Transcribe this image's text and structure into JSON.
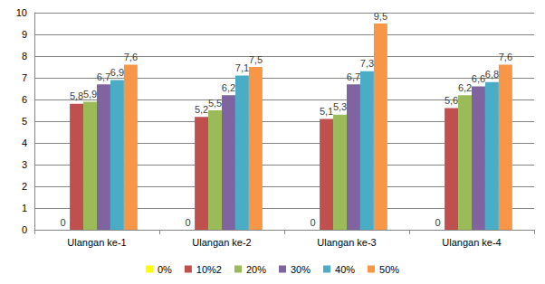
{
  "chart_data": {
    "type": "bar",
    "categories": [
      "Ulangan ke-1",
      "Ulangan ke-2",
      "Ulangan ke-3",
      "Ulangan ke-4"
    ],
    "series": [
      {
        "name": "0%",
        "color": "#FFFF00",
        "values": [
          0,
          0,
          0,
          0
        ]
      },
      {
        "name": "10%2",
        "color": "#C0504D",
        "values": [
          5.8,
          5.2,
          5.1,
          5.6
        ],
        "value_labels": [
          "5,8",
          "5,2",
          "5,1",
          "5,6"
        ]
      },
      {
        "name": "20%",
        "color": "#9BBB59",
        "values": [
          5.9,
          5.5,
          5.3,
          6.2
        ],
        "value_labels": [
          "5,9",
          "5,5",
          "5,3",
          "6,2"
        ]
      },
      {
        "name": "30%",
        "color": "#8064A2",
        "values": [
          6.7,
          6.2,
          6.7,
          6.6
        ],
        "value_labels": [
          "6,7",
          "6,2",
          "6,7",
          "6,6"
        ]
      },
      {
        "name": "40%",
        "color": "#4BACC6",
        "values": [
          6.9,
          7.1,
          7.3,
          6.8
        ],
        "value_labels": [
          "6,9",
          "7,1",
          "7,3",
          "6,8"
        ]
      },
      {
        "name": "50%",
        "color": "#F79646",
        "values": [
          7.6,
          7.5,
          9.5,
          7.6
        ],
        "value_labels": [
          "7,6",
          "7,5",
          "9,5",
          "7,6"
        ]
      }
    ],
    "ylim": [
      0,
      10
    ],
    "yticks": [
      0,
      1,
      2,
      3,
      4,
      5,
      6,
      7,
      8,
      9,
      10
    ],
    "grid": true,
    "legend": "bottom",
    "data_labels": true
  }
}
